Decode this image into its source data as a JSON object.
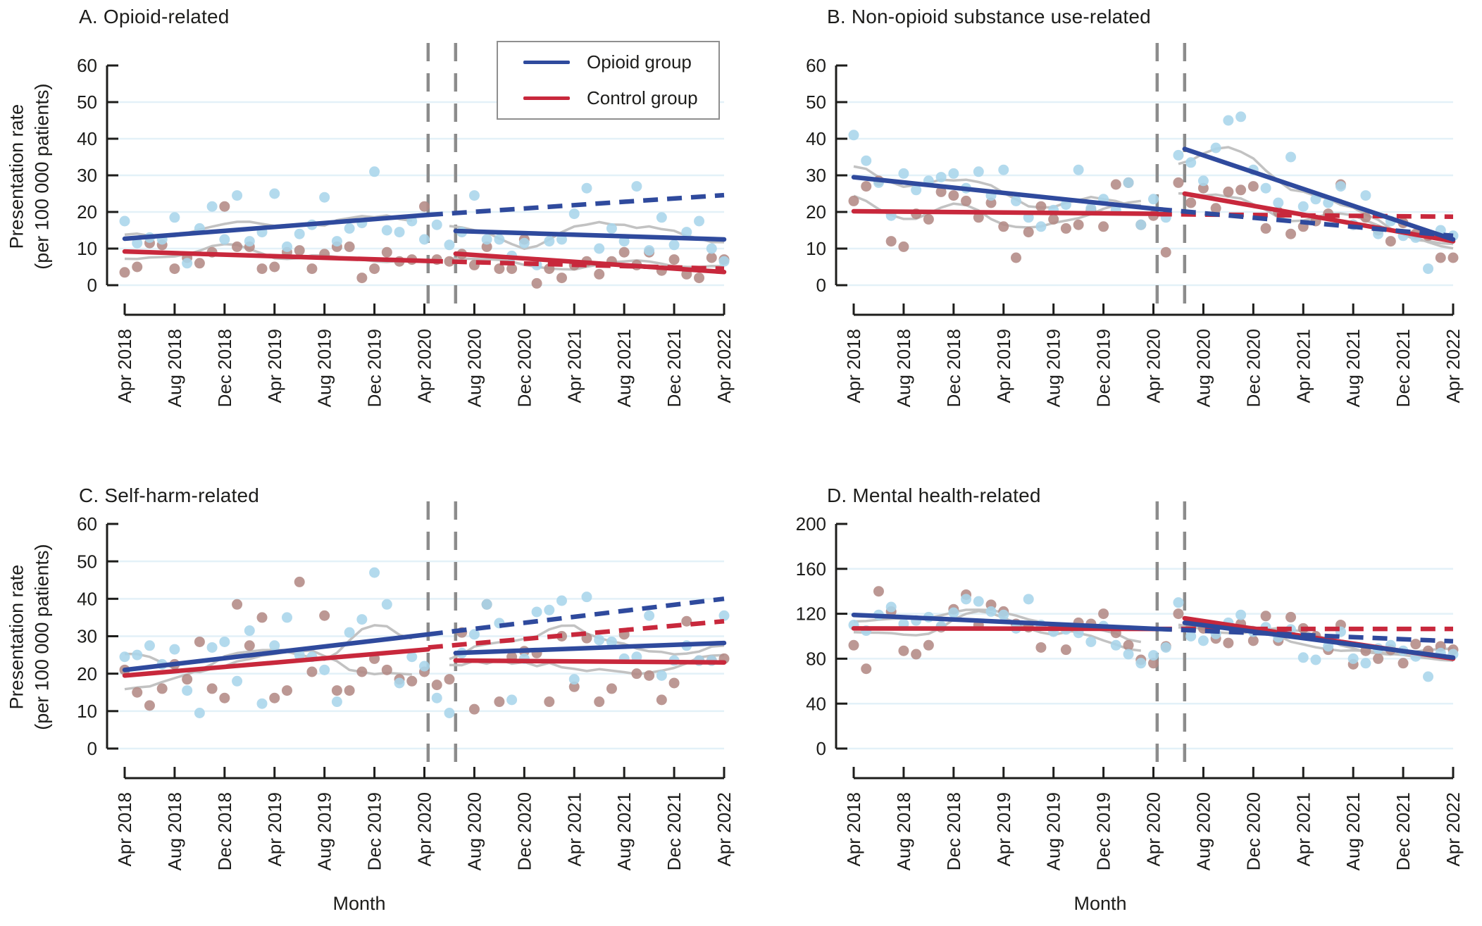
{
  "shared": {
    "y_axis_title_line1": "Presentation rate",
    "y_axis_title_line2": "(per 100 000 patients)",
    "x_axis_title": "Month",
    "x_tick_labels": [
      "Apr 2018",
      "Aug 2018",
      "Dec 2018",
      "Apr 2019",
      "Aug 2019",
      "Dec 2019",
      "Apr 2020",
      "Aug 2020",
      "Dec 2020",
      "Apr 2021",
      "Aug 2021",
      "Dec 2021",
      "Apr 2022"
    ],
    "legend": {
      "opioid": "Opioid group",
      "control": "Control group"
    },
    "colors": {
      "opioid_line": "#2f4a9d",
      "control_line": "#c8283c",
      "opioid_point": "#a9d5ea",
      "control_point": "#b38a85",
      "smooth_line": "#bfbfbf",
      "gridline": "#e3f1f8",
      "intervention_line": "#8c8c8c",
      "axis": "#1d1d1b",
      "text": "#1d1d1b"
    },
    "intervention_months": [
      24.3,
      26.5
    ],
    "x_months_total": 48
  },
  "chart_data": [
    {
      "panel_label": "A",
      "title": "A. Opioid-related",
      "type": "scatter",
      "x_unit": "months since Apr 2018",
      "ylim": [
        0,
        60
      ],
      "yticks": [
        0,
        10,
        20,
        30,
        40,
        50,
        60
      ],
      "scatter_monthly": {
        "opioid": [
          17.5,
          11.5,
          13,
          12.5,
          18.5,
          6,
          15.5,
          21.5,
          12.5,
          24.5,
          12,
          14.5,
          25,
          10.5,
          14,
          16.5,
          24,
          12,
          15.5,
          17,
          31,
          15,
          14.5,
          17.5,
          12.5,
          16.5,
          11,
          14.5,
          24.5,
          12.5,
          12.5,
          8,
          11.5,
          5.5,
          12,
          12.5,
          19.5,
          26.5,
          10,
          15.5,
          12,
          27,
          9.5,
          18.5,
          11,
          14.5,
          17.5,
          10,
          6.5
        ],
        "control": [
          3.5,
          5,
          11.5,
          11,
          4.5,
          7.5,
          6,
          9,
          21.5,
          10.5,
          10.5,
          4.5,
          5,
          9,
          9.5,
          4.5,
          8.5,
          10.5,
          10.5,
          2,
          4.5,
          9,
          6.5,
          7,
          21.5,
          7,
          6.5,
          8.5,
          5.5,
          10.5,
          4.5,
          4.5,
          12.5,
          0.5,
          4.5,
          2,
          5.5,
          6.5,
          3,
          6.5,
          9,
          5.5,
          9,
          4,
          7,
          3,
          2,
          7.5,
          7
        ]
      },
      "trend": {
        "opioid": {
          "pre": [
            12.7,
            19.2
          ],
          "counterfactual": [
            19.2,
            24.6
          ],
          "post": [
            14.8,
            12.5
          ]
        },
        "control": {
          "pre": [
            9.2,
            6.6
          ],
          "counterfactual": [
            6.6,
            4.5
          ],
          "post": [
            8.6,
            3.6
          ]
        }
      }
    },
    {
      "panel_label": "B",
      "title": "B. Non-opioid substance use-related",
      "type": "scatter",
      "x_unit": "months since Apr 2018",
      "ylim": [
        0,
        60
      ],
      "yticks": [
        0,
        10,
        20,
        30,
        40,
        50,
        60
      ],
      "scatter_monthly": {
        "opioid": [
          41,
          34,
          28,
          19,
          30.5,
          26,
          28.5,
          29.5,
          30.5,
          26.5,
          31,
          24.5,
          31.5,
          23,
          18.5,
          16,
          20.5,
          22,
          31.5,
          21,
          23.5,
          20.5,
          28,
          16.5,
          23.5,
          18.5,
          35.5,
          33.5,
          28.5,
          37.5,
          45,
          46,
          31.5,
          26.5,
          22.5,
          35,
          21.5,
          23.5,
          22.5,
          27,
          16.5,
          24.5,
          14,
          17.5,
          13.5,
          13,
          4.5,
          15,
          13.5
        ],
        "control": [
          23,
          27,
          28.5,
          12,
          10.5,
          19.5,
          18,
          25.5,
          24.5,
          23,
          18.5,
          22.5,
          16,
          7.5,
          14.5,
          21.5,
          18,
          15.5,
          16.5,
          20.5,
          16,
          27.5,
          28,
          16.5,
          19,
          9,
          28,
          22.5,
          26.5,
          21,
          25.5,
          26,
          27,
          15.5,
          20,
          14,
          16,
          17.5,
          19.5,
          27.5,
          16.5,
          18.5,
          15,
          12,
          17,
          14,
          13.5,
          7.5,
          7.5
        ]
      },
      "trend": {
        "opioid": {
          "pre": [
            29.5,
            20.8
          ],
          "counterfactual": [
            20.8,
            13.5
          ],
          "post": [
            37.2,
            12.5
          ]
        },
        "control": {
          "pre": [
            20.2,
            19.5
          ],
          "counterfactual": [
            19.4,
            18.7
          ],
          "post": [
            25.0,
            12.0
          ]
        }
      }
    },
    {
      "panel_label": "C",
      "title": "C. Self-harm-related",
      "type": "scatter",
      "x_unit": "months since Apr 2018",
      "ylim": [
        0,
        60
      ],
      "yticks": [
        0,
        10,
        20,
        30,
        40,
        50,
        60
      ],
      "scatter_monthly": {
        "opioid": [
          24.5,
          25,
          27.5,
          22.5,
          26.5,
          15.5,
          9.5,
          27,
          28.5,
          18,
          31.5,
          12,
          27.5,
          35,
          25,
          24.5,
          21,
          12.5,
          31,
          34.5,
          47,
          38.5,
          17.5,
          24.5,
          22,
          13.5,
          9.5,
          25.5,
          30.5,
          38.5,
          33.5,
          13,
          24,
          36.5,
          37,
          39.5,
          18.5,
          40.5,
          29,
          28.5,
          24,
          24.5,
          35.5,
          19.5,
          23.5,
          27.5,
          23.5,
          23.5,
          35.5
        ],
        "control": [
          21,
          15,
          11.5,
          16,
          22.5,
          18.5,
          28.5,
          16,
          13.5,
          38.5,
          27.5,
          35,
          13.5,
          15.5,
          44.5,
          20.5,
          35.5,
          15.5,
          15.5,
          20.5,
          24,
          21,
          18.5,
          18,
          20.5,
          17,
          18.5,
          31,
          10.5,
          38.5,
          12.5,
          24.5,
          26,
          25.5,
          12.5,
          30,
          16.5,
          29.5,
          12.5,
          16,
          30.5,
          20,
          19.5,
          13,
          17.5,
          34,
          23.5,
          23.5,
          24
        ]
      },
      "trend": {
        "opioid": {
          "pre": [
            21.0,
            30.5
          ],
          "counterfactual": [
            30.5,
            40.0
          ],
          "post": [
            25.5,
            28.2
          ]
        },
        "control": {
          "pre": [
            19.5,
            26.5
          ],
          "counterfactual": [
            27.0,
            34.0
          ],
          "post": [
            23.5,
            23.0
          ]
        }
      }
    },
    {
      "panel_label": "D",
      "title": "D. Mental health-related",
      "type": "scatter",
      "x_unit": "months since Apr 2018",
      "ylim": [
        0,
        200
      ],
      "yticks": [
        0,
        40,
        80,
        120,
        160,
        200
      ],
      "scatter_monthly": {
        "opioid": [
          110,
          105,
          119,
          126,
          111,
          114,
          117,
          109,
          121,
          133,
          131,
          122,
          119,
          107,
          133,
          110,
          104,
          106,
          103,
          95,
          109,
          92,
          84,
          76,
          83,
          90,
          130,
          100,
          96,
          102,
          112,
          119,
          104,
          108,
          99,
          106,
          81,
          79,
          91,
          104,
          80,
          76,
          89,
          92,
          87,
          82,
          64,
          85,
          84
        ],
        "control": [
          92,
          71,
          140,
          122,
          87,
          84,
          92,
          108,
          124,
          137,
          110,
          128,
          122,
          111,
          108,
          90,
          108,
          88,
          112,
          111,
          120,
          103,
          92,
          79,
          76,
          91,
          120,
          109,
          107,
          98,
          94,
          111,
          96,
          118,
          96,
          117,
          107,
          100,
          88,
          110,
          75,
          87,
          80,
          88,
          76,
          93,
          87,
          91,
          88
        ]
      },
      "trend": {
        "opioid": {
          "pre": [
            119.0,
            106.5
          ],
          "counterfactual": [
            106.5,
            95.5
          ],
          "post": [
            112.0,
            81.0
          ]
        },
        "control": {
          "pre": [
            107.0,
            106.5
          ],
          "counterfactual": [
            106.5,
            106.5
          ],
          "post": [
            116.0,
            80.0
          ]
        }
      }
    }
  ]
}
